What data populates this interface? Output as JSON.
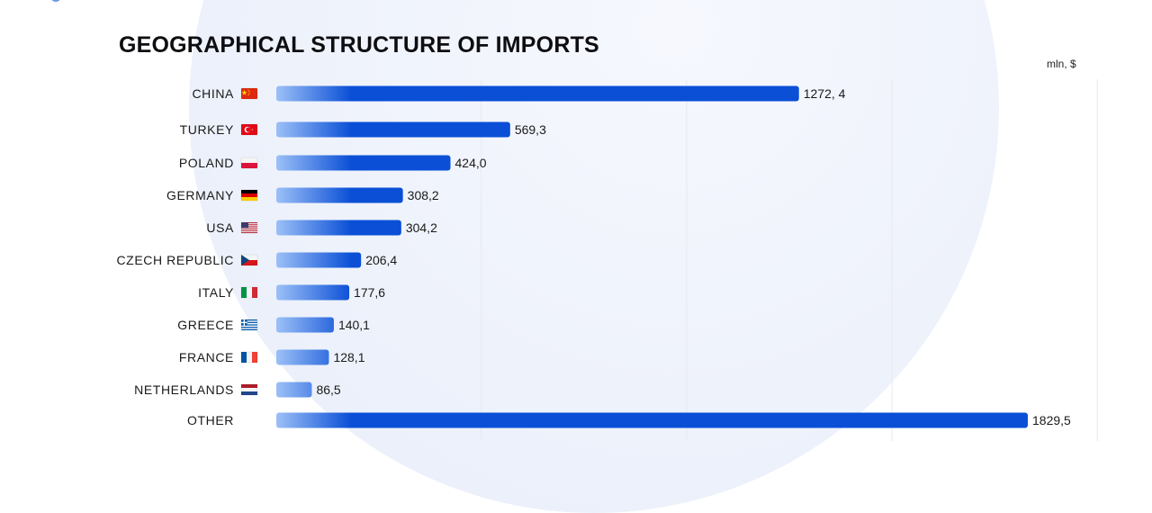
{
  "title": "GEOGRAPHICAL STRUCTURE OF IMPORTS",
  "unit_label": "mln, $",
  "colors": {
    "bar_start": "#9cc0f7",
    "bar_end": "#0a4fd6",
    "gridline": "#e6e9ef"
  },
  "chart_data": {
    "type": "bar",
    "orientation": "horizontal",
    "title": "GEOGRAPHICAL STRUCTURE OF IMPORTS",
    "unit": "mln, $",
    "grid": true,
    "xlim": [
      0,
      2000
    ],
    "categories": [
      {
        "label": "CHINA",
        "flag": "china-flag-icon"
      },
      {
        "label": "TURKEY",
        "flag": "turkey-flag-icon"
      },
      {
        "label": "POLAND",
        "flag": "poland-flag-icon"
      },
      {
        "label": "GERMANY",
        "flag": "germany-flag-icon"
      },
      {
        "label": "USA",
        "flag": "usa-flag-icon"
      },
      {
        "label": "CZECH REPUBLIC",
        "flag": "czech-flag-icon"
      },
      {
        "label": "ITALY",
        "flag": "italy-flag-icon"
      },
      {
        "label": "GREECE",
        "flag": "greece-flag-icon"
      },
      {
        "label": "FRANCE",
        "flag": "france-flag-icon"
      },
      {
        "label": "NETHERLANDS",
        "flag": "netherlands-flag-icon"
      },
      {
        "label": "OTHER",
        "flag": ""
      }
    ],
    "values": [
      1272.4,
      569.3,
      424.0,
      308.2,
      304.2,
      206.4,
      177.6,
      140.1,
      128.1,
      86.5,
      1829.5
    ],
    "value_labels": [
      "1272, 4",
      "569,3",
      "424,0",
      "308,2",
      "304,2",
      "206,4",
      "177,6",
      "140,1",
      "128,1",
      "86,5",
      "1829,5"
    ]
  }
}
